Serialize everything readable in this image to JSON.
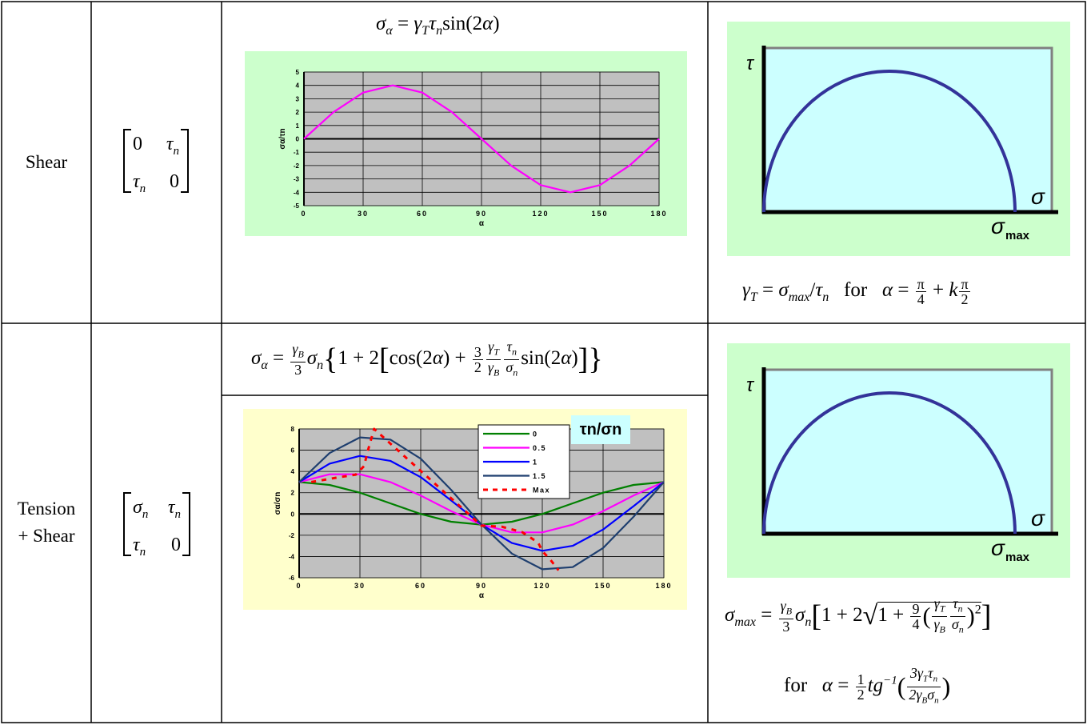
{
  "rows": [
    {
      "label": "Shear",
      "matrix": [
        [
          "0",
          "τn"
        ],
        [
          "τn",
          "0"
        ]
      ],
      "stress_formula": "σα = γT τn sin(2α)",
      "criterion": "γT = σmax/τn  for  α = π/4 + kπ/2"
    },
    {
      "label_line1": "Tension",
      "label_line2": "+ Shear",
      "matrix": [
        [
          "σn",
          "τn"
        ],
        [
          "τn",
          "0"
        ]
      ],
      "stress_formula": "σα = γB/3 σn {1 + 2[cos(2α) + 3/2 γT/γB τn/σn sin(2α)]}",
      "criterion_line1": "σmax = γB/3 σn [1 + 2 √(1 + 9/4 (γT/γB τn/σn)²)]",
      "criterion_line2": "for  α = 1/2 tg⁻¹(3γT τn / 2γB σn)"
    }
  ],
  "mohr_diagram": {
    "tau_label": "τ",
    "sigma_label": "σ",
    "sigma_max_label": "σ",
    "sigma_max_sub": "max",
    "bg_color": "#ccffff",
    "frame_color": "#ccffcc",
    "arc_color": "#333399"
  },
  "chart_data": [
    {
      "type": "line",
      "x": [
        0,
        15,
        30,
        45,
        60,
        75,
        90,
        105,
        120,
        135,
        150,
        165,
        180
      ],
      "series": [
        {
          "values": [
            0,
            2,
            3.46,
            4,
            3.46,
            2,
            0,
            -2,
            -3.46,
            -4,
            -3.46,
            -2,
            0
          ],
          "color": "#ff00ff"
        }
      ],
      "xticks": [
        "0",
        "30",
        "60",
        "90",
        "120",
        "150",
        "180"
      ],
      "yticks": [
        "5",
        "4",
        "3",
        "2",
        "1",
        "0",
        "-1",
        "-2",
        "-3",
        "-4",
        "-5"
      ],
      "xlabel": "α",
      "ylabel": "σα/τn",
      "xlim": [
        0,
        180
      ],
      "ylim": [
        -5,
        5
      ],
      "grid": true,
      "plot_bg": "#c0c0c0",
      "panel_bg": "#ccffcc"
    },
    {
      "type": "line",
      "x": [
        0,
        15,
        30,
        45,
        60,
        75,
        90,
        105,
        120,
        135,
        150,
        165,
        180
      ],
      "series": [
        {
          "name": "0",
          "color": "#008000",
          "values": [
            3,
            2.73,
            2,
            1,
            0,
            -0.73,
            -1,
            -0.73,
            0,
            1,
            2,
            2.73,
            3
          ]
        },
        {
          "name": "0.5",
          "color": "#ff00ff",
          "values": [
            3,
            3.73,
            3.73,
            3,
            1.73,
            0.27,
            -1,
            -1.73,
            -1.73,
            -1,
            0.27,
            1.73,
            3
          ]
        },
        {
          "name": "1",
          "color": "#0000ff",
          "values": [
            3,
            4.73,
            5.46,
            5,
            3.46,
            1.27,
            -1,
            -2.73,
            -3.46,
            -3,
            -1.46,
            0.73,
            3
          ]
        },
        {
          "name": "1.5",
          "color": "#1f3f6f",
          "values": [
            3,
            5.73,
            7.2,
            7,
            5.2,
            2.27,
            -1,
            -3.73,
            -5.2,
            -5,
            -3.2,
            -0.27,
            3
          ]
        },
        {
          "name": "Max",
          "color": "#ff0000",
          "dashed": true,
          "x": [
            6,
            18,
            28,
            32,
            34,
            37,
            90,
            100,
            110,
            118,
            120,
            124,
            128
          ],
          "values": [
            3,
            3.4,
            3.7,
            4.5,
            6,
            8,
            -1.1,
            -1.2,
            -1.7,
            -2.7,
            -3.5,
            -4.3,
            -5.3
          ]
        }
      ],
      "legend_title": "τn/σn",
      "legend_position": "top-right",
      "xticks": [
        "0",
        "30",
        "60",
        "90",
        "120",
        "150",
        "180"
      ],
      "yticks": [
        "8",
        "6",
        "4",
        "2",
        "0",
        "-2",
        "-4",
        "-6"
      ],
      "xlabel": "α",
      "ylabel": "σα/σn",
      "xlim": [
        0,
        180
      ],
      "ylim": [
        -6,
        8
      ],
      "grid": true,
      "plot_bg": "#c0c0c0",
      "panel_bg": "#ffffcc"
    }
  ]
}
